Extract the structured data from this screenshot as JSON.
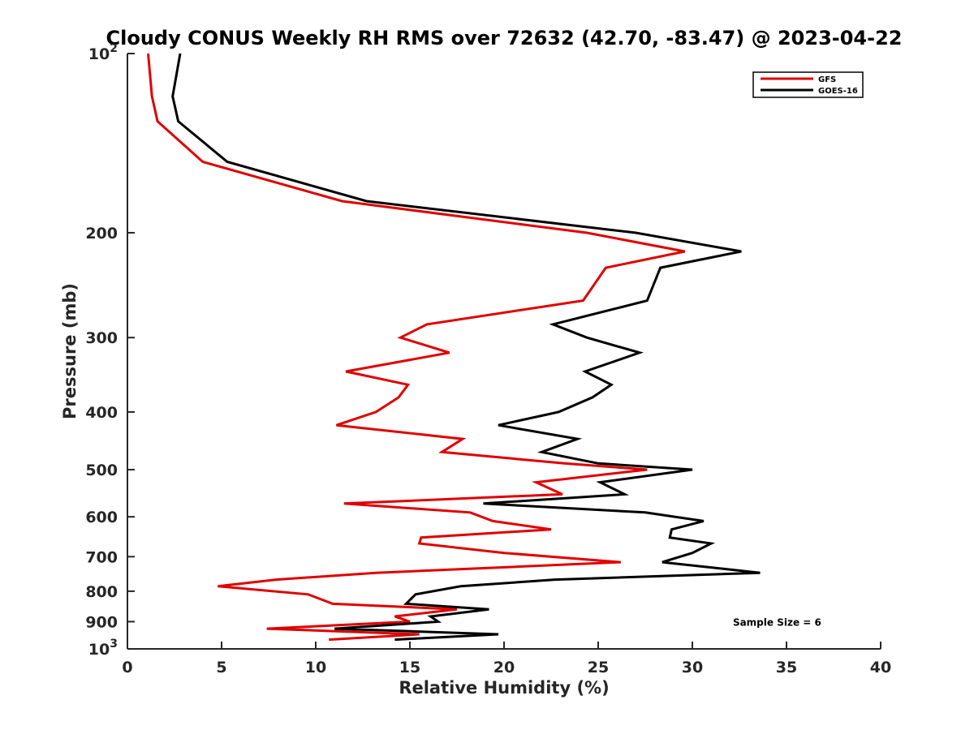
{
  "chart_data": {
    "type": "line",
    "title": "Cloudy CONUS Weekly RH RMS over 72632 (42.70, -83.47) @ 2023-04-22",
    "xlabel": "Relative Humidity (%)",
    "ylabel": "Pressure (mb)",
    "xlim": [
      0,
      40
    ],
    "ylim": [
      100,
      1000
    ],
    "y_scale": "log",
    "y_reversed": true,
    "x_ticks": [
      0,
      5,
      10,
      15,
      20,
      25,
      30,
      35,
      40
    ],
    "x_tick_labels": [
      "0",
      "5",
      "10",
      "15",
      "20",
      "25",
      "30",
      "35",
      "40"
    ],
    "y_ticks": [
      100,
      200,
      300,
      400,
      500,
      600,
      700,
      800,
      900,
      1000
    ],
    "y_tick_labels": [
      "10^2",
      "200",
      "300",
      "400",
      "500",
      "600",
      "700",
      "800",
      "900",
      "10^3"
    ],
    "grid": false,
    "legend_position": "top-right",
    "series": [
      {
        "name": "GFS",
        "color": "#e00000",
        "points": [
          [
            1.1,
            100
          ],
          [
            1.3,
            118
          ],
          [
            1.6,
            130
          ],
          [
            4.0,
            152
          ],
          [
            11.4,
            177
          ],
          [
            24.4,
            200
          ],
          [
            29.6,
            215
          ],
          [
            25.4,
            229
          ],
          [
            24.2,
            260
          ],
          [
            15.9,
            285
          ],
          [
            14.5,
            300
          ],
          [
            17.1,
            318
          ],
          [
            11.6,
            342
          ],
          [
            14.9,
            360
          ],
          [
            14.4,
            378
          ],
          [
            13.2,
            400
          ],
          [
            11.1,
            421
          ],
          [
            17.8,
            444
          ],
          [
            16.7,
            467
          ],
          [
            23.2,
            488
          ],
          [
            27.6,
            500
          ],
          [
            21.7,
            525
          ],
          [
            23.1,
            550
          ],
          [
            11.5,
            570
          ],
          [
            18.2,
            590
          ],
          [
            19.4,
            610
          ],
          [
            22.5,
            630
          ],
          [
            15.6,
            650
          ],
          [
            15.5,
            665
          ],
          [
            20.0,
            690
          ],
          [
            26.2,
            715
          ],
          [
            13.2,
            745
          ],
          [
            7.9,
            765
          ],
          [
            4.8,
            785
          ],
          [
            9.6,
            810
          ],
          [
            10.9,
            840
          ],
          [
            17.5,
            858
          ],
          [
            14.2,
            882
          ],
          [
            15.0,
            900
          ],
          [
            7.4,
            925
          ],
          [
            15.5,
            945
          ],
          [
            10.7,
            965
          ]
        ]
      },
      {
        "name": "GOES-16",
        "color": "#000000",
        "points": [
          [
            2.8,
            100
          ],
          [
            2.4,
            118
          ],
          [
            2.7,
            130
          ],
          [
            5.3,
            152
          ],
          [
            12.7,
            177
          ],
          [
            27.0,
            200
          ],
          [
            32.6,
            215
          ],
          [
            28.3,
            229
          ],
          [
            27.6,
            260
          ],
          [
            22.6,
            285
          ],
          [
            24.4,
            300
          ],
          [
            27.2,
            318
          ],
          [
            24.3,
            342
          ],
          [
            25.7,
            360
          ],
          [
            24.7,
            378
          ],
          [
            22.9,
            400
          ],
          [
            19.7,
            421
          ],
          [
            23.9,
            444
          ],
          [
            22.0,
            467
          ],
          [
            25.0,
            488
          ],
          [
            30.0,
            500
          ],
          [
            25.1,
            525
          ],
          [
            26.4,
            550
          ],
          [
            18.9,
            570
          ],
          [
            27.5,
            590
          ],
          [
            30.6,
            610
          ],
          [
            28.9,
            630
          ],
          [
            28.8,
            650
          ],
          [
            31.0,
            665
          ],
          [
            30.0,
            690
          ],
          [
            28.4,
            715
          ],
          [
            33.6,
            745
          ],
          [
            22.7,
            765
          ],
          [
            17.7,
            785
          ],
          [
            15.3,
            810
          ],
          [
            14.8,
            840
          ],
          [
            19.2,
            858
          ],
          [
            16.1,
            882
          ],
          [
            16.5,
            900
          ],
          [
            11.0,
            925
          ],
          [
            19.7,
            945
          ],
          [
            14.2,
            965
          ]
        ]
      }
    ],
    "annotations": [
      {
        "text": "Sample Size = 6",
        "x": 34.5,
        "y": 900
      }
    ]
  }
}
